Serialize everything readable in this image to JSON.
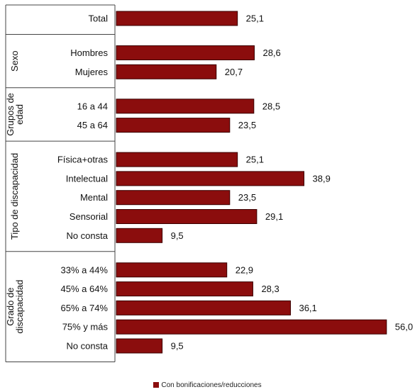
{
  "colors": {
    "bar": "#8B0D0D",
    "frame": "#444444"
  },
  "chart_data": {
    "type": "bar",
    "orientation": "horizontal",
    "xlim": [
      0,
      60
    ],
    "grid": false,
    "legend_position": "bottom-center",
    "series": [
      {
        "name": "Con bonificaciones/reducciones"
      }
    ],
    "groups": [
      {
        "label": "",
        "items": [
          {
            "label": "Total",
            "value": 25.1,
            "value_label": "25,1"
          }
        ]
      },
      {
        "label": "Sexo",
        "items": [
          {
            "label": "Hombres",
            "value": 28.6,
            "value_label": "28,6"
          },
          {
            "label": "Mujeres",
            "value": 20.7,
            "value_label": "20,7"
          }
        ]
      },
      {
        "label": "Grupos de edad",
        "label_lines": [
          "Grupos de",
          "edad"
        ],
        "items": [
          {
            "label": "16 a 44",
            "value": 28.5,
            "value_label": "28,5"
          },
          {
            "label": "45 a 64",
            "value": 23.5,
            "value_label": "23,5"
          }
        ]
      },
      {
        "label": "Tipo de discapacidad",
        "items": [
          {
            "label": "Física+otras",
            "value": 25.1,
            "value_label": "25,1"
          },
          {
            "label": "Intelectual",
            "value": 38.9,
            "value_label": "38,9"
          },
          {
            "label": "Mental",
            "value": 23.5,
            "value_label": "23,5"
          },
          {
            "label": "Sensorial",
            "value": 29.1,
            "value_label": "29,1"
          },
          {
            "label": "No consta",
            "value": 9.5,
            "value_label": "9,5"
          }
        ]
      },
      {
        "label": "Grado de discapacidad",
        "label_lines": [
          "Grado de",
          "discapacidad"
        ],
        "items": [
          {
            "label": "33% a 44%",
            "value": 22.9,
            "value_label": "22,9"
          },
          {
            "label": "45% a 64%",
            "value": 28.3,
            "value_label": "28,3"
          },
          {
            "label": "65% a 74%",
            "value": 36.1,
            "value_label": "36,1"
          },
          {
            "label": "75% y más",
            "value": 56.0,
            "value_label": "56,0"
          },
          {
            "label": "No consta",
            "value": 9.5,
            "value_label": "9,5"
          }
        ]
      }
    ]
  }
}
